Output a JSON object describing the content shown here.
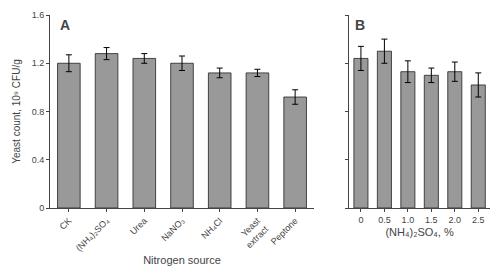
{
  "chart_data": [
    {
      "type": "bar",
      "categories": [
        "CK",
        "(NH₄)₂SO₄",
        "Urea",
        "NaNO₃",
        "NH₄Cl",
        "Yeast\nextract",
        "Peptone"
      ],
      "values": [
        1.2,
        1.28,
        1.24,
        1.2,
        1.12,
        1.12,
        0.92
      ],
      "errors": [
        0.07,
        0.05,
        0.04,
        0.06,
        0.04,
        0.03,
        0.06
      ],
      "xlabel": "Nitrogen source",
      "ylabel": "Yeast count, 10⁹ CFU/g",
      "ylim": [
        0,
        1.6
      ],
      "yticks": [
        0,
        0.4,
        0.8,
        1.2,
        1.6
      ],
      "annotations": [
        "A"
      ],
      "color": "#999999",
      "grid": false
    },
    {
      "type": "bar",
      "categories": [
        "0",
        "0.5",
        "1.0",
        "1.5",
        "2.0",
        "2.5"
      ],
      "values": [
        1.24,
        1.3,
        1.13,
        1.1,
        1.13,
        1.02
      ],
      "errors": [
        0.1,
        0.1,
        0.09,
        0.06,
        0.08,
        0.1
      ],
      "xlabel": "(NH₄)₂SO₄, %",
      "ylim": [
        0,
        1.6
      ],
      "yticks": [
        0,
        0.4,
        0.8,
        1.2,
        1.6
      ],
      "annotations": [
        "B"
      ],
      "color": "#999999",
      "grid": false,
      "tick_labels": "x"
    }
  ]
}
